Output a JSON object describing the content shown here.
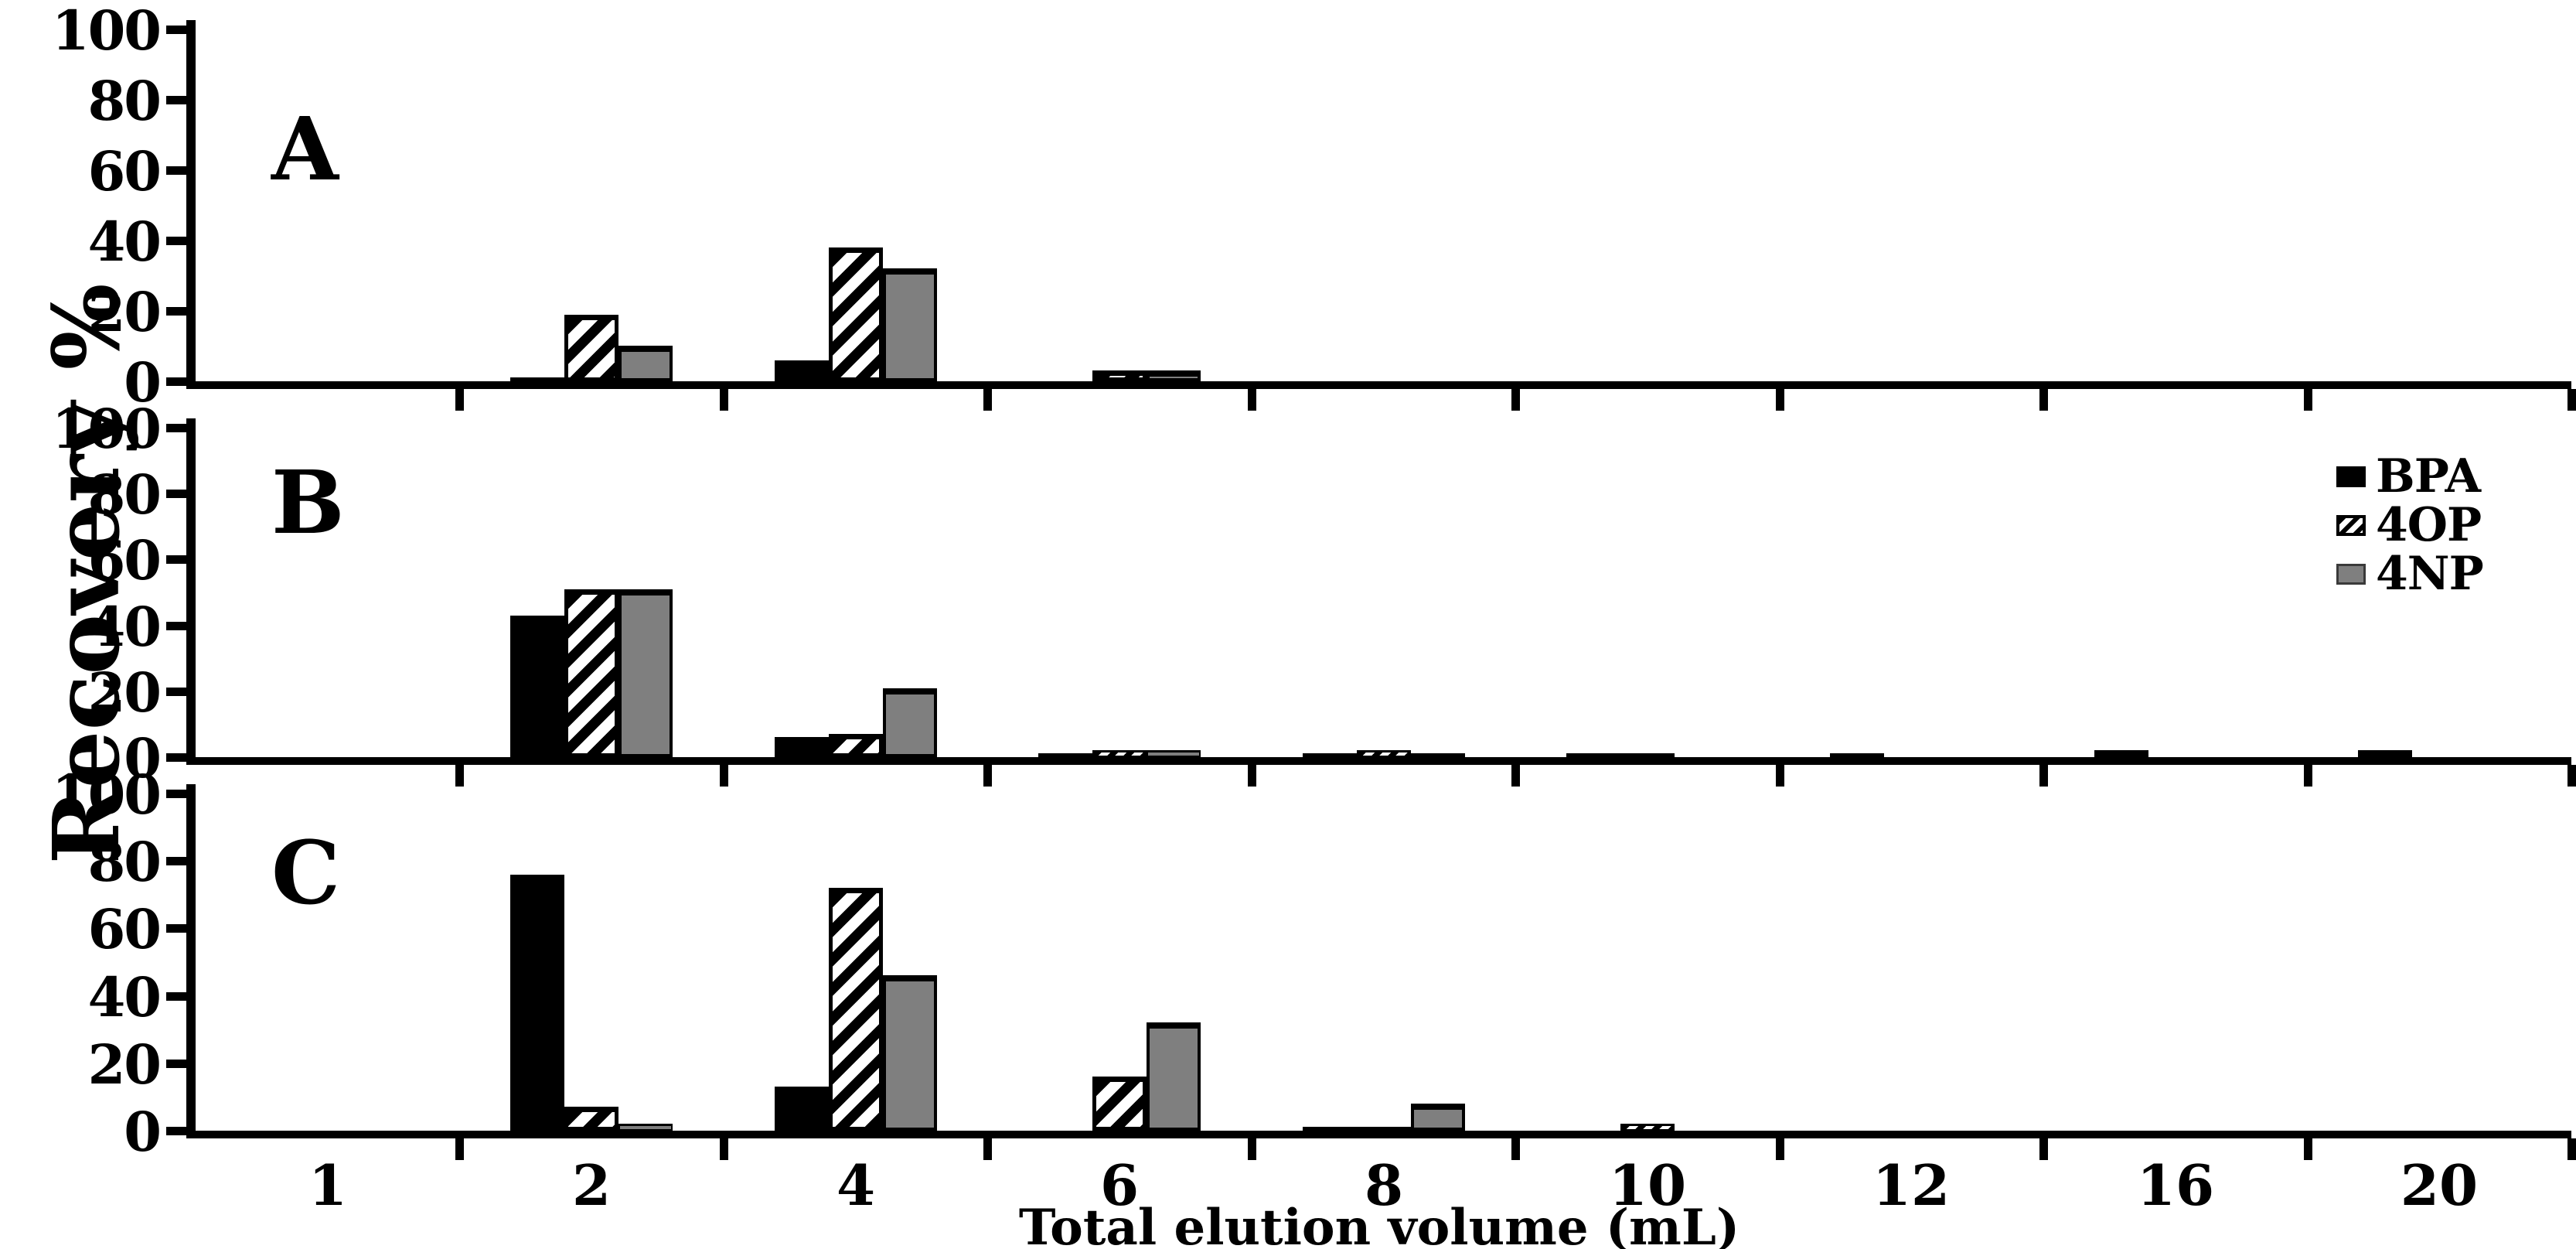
{
  "figure": {
    "y_axis_title": "Recovery %",
    "x_axis_title": "Total elution volume (mL)",
    "background_color": "#ffffff",
    "axis_color": "#000000"
  },
  "legend": {
    "position": "top-right-of-panel-B",
    "items": [
      {
        "label": "BPA",
        "style": "solid-black",
        "color": "#000000"
      },
      {
        "label": "4OP",
        "style": "diagonal-hatch",
        "color": "#000000"
      },
      {
        "label": "4NP",
        "style": "solid-gray",
        "color": "#7f7f7f"
      }
    ]
  },
  "chart_data": [
    {
      "type": "bar",
      "panel_label": "A",
      "categories": [
        "1",
        "2",
        "4",
        "6",
        "8",
        "10",
        "12",
        "16",
        "20"
      ],
      "series": [
        {
          "name": "BPA",
          "values": [
            0,
            1,
            6,
            0,
            0,
            0,
            0,
            0,
            0
          ]
        },
        {
          "name": "4OP",
          "values": [
            0,
            19,
            38,
            3,
            0,
            0,
            0,
            0,
            0
          ]
        },
        {
          "name": "4NP",
          "values": [
            0,
            10,
            32,
            3,
            0,
            0,
            0,
            0,
            0
          ]
        }
      ],
      "xlabel": "Total elution volume (mL)",
      "ylabel": "Recovery %",
      "ylim": [
        0,
        100
      ],
      "yticks": [
        0,
        20,
        40,
        60,
        80,
        100
      ],
      "grid": false,
      "legend_visible": false
    },
    {
      "type": "bar",
      "panel_label": "B",
      "categories": [
        "1",
        "2",
        "4",
        "6",
        "8",
        "10",
        "12",
        "16",
        "20"
      ],
      "series": [
        {
          "name": "BPA",
          "values": [
            0,
            43,
            6,
            1,
            1,
            1,
            1,
            2,
            2
          ]
        },
        {
          "name": "4OP",
          "values": [
            0,
            51,
            7,
            2,
            2,
            1,
            0,
            0,
            0
          ]
        },
        {
          "name": "4NP",
          "values": [
            0,
            51,
            21,
            2,
            1,
            0,
            0,
            0,
            0
          ]
        }
      ],
      "xlabel": "Total elution volume (mL)",
      "ylabel": "Recovery %",
      "ylim": [
        0,
        100
      ],
      "yticks": [
        0,
        20,
        40,
        60,
        80,
        100
      ],
      "grid": false,
      "legend_visible": true
    },
    {
      "type": "bar",
      "panel_label": "C",
      "categories": [
        "1",
        "2",
        "4",
        "6",
        "8",
        "10",
        "12",
        "16",
        "20"
      ],
      "series": [
        {
          "name": "BPA",
          "values": [
            0,
            76,
            13,
            0,
            1,
            0,
            0,
            0,
            0
          ]
        },
        {
          "name": "4OP",
          "values": [
            0,
            7,
            72,
            16,
            1,
            2,
            0,
            0,
            0
          ]
        },
        {
          "name": "4NP",
          "values": [
            0,
            2,
            46,
            32,
            8,
            0,
            0,
            0,
            0
          ]
        }
      ],
      "xlabel": "Total elution volume (mL)",
      "ylabel": "Recovery %",
      "ylim": [
        0,
        100
      ],
      "yticks": [
        0,
        20,
        40,
        60,
        80,
        100
      ],
      "grid": false,
      "legend_visible": true
    }
  ]
}
